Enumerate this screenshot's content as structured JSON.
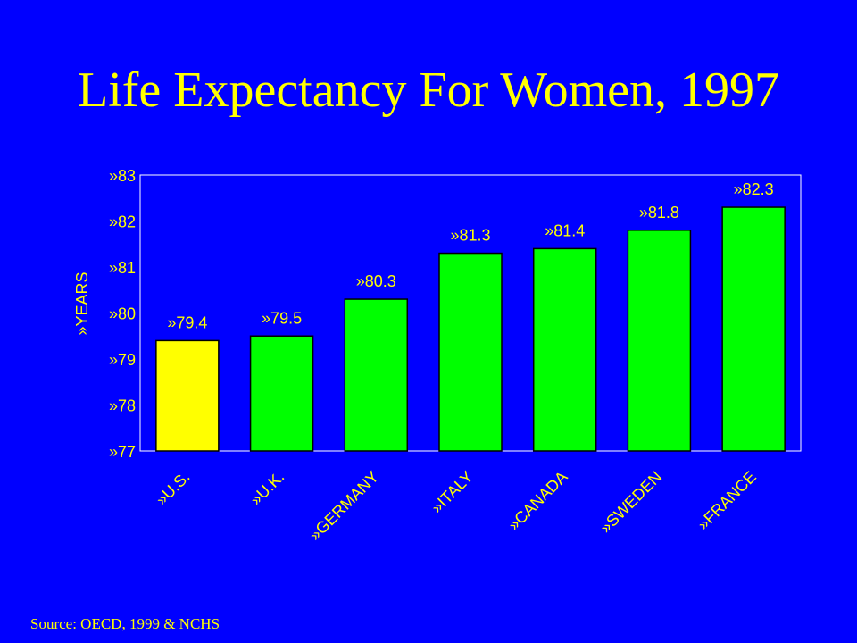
{
  "slide": {
    "title": "Life Expectancy For Women, 1997",
    "source": "Source: OECD, 1999 & NCHS"
  },
  "chart_data": {
    "type": "bar",
    "title": "Life Expectancy For Women, 1997",
    "ylabel": "»YEARS",
    "xlabel": "",
    "categories": [
      "»U.S.",
      "»U.K.",
      "»GERMANY",
      "»ITALY",
      "»CANADA",
      "»SWEDEN",
      "»FRANCE"
    ],
    "values": [
      79.4,
      79.5,
      80.3,
      81.3,
      81.4,
      81.8,
      82.3
    ],
    "value_labels": [
      "»79.4",
      "»79.5",
      "»80.3",
      "»81.3",
      "»81.4",
      "»81.8",
      "»82.3"
    ],
    "ylim": [
      77,
      83
    ],
    "yticks": [
      77,
      78,
      79,
      80,
      81,
      82,
      83
    ],
    "ytick_labels": [
      "»77",
      "»78",
      "»79",
      "»80",
      "»81",
      "»82",
      "»83"
    ],
    "grid": false,
    "legend": "none",
    "colors": {
      "background": "#0000FF",
      "text": "#FFFF00",
      "axis": "#FFFFFF",
      "highlight_bar": "#FFFF00",
      "bar": "#00FF00",
      "bar_edge": "#000000"
    },
    "highlight_index": 0
  }
}
